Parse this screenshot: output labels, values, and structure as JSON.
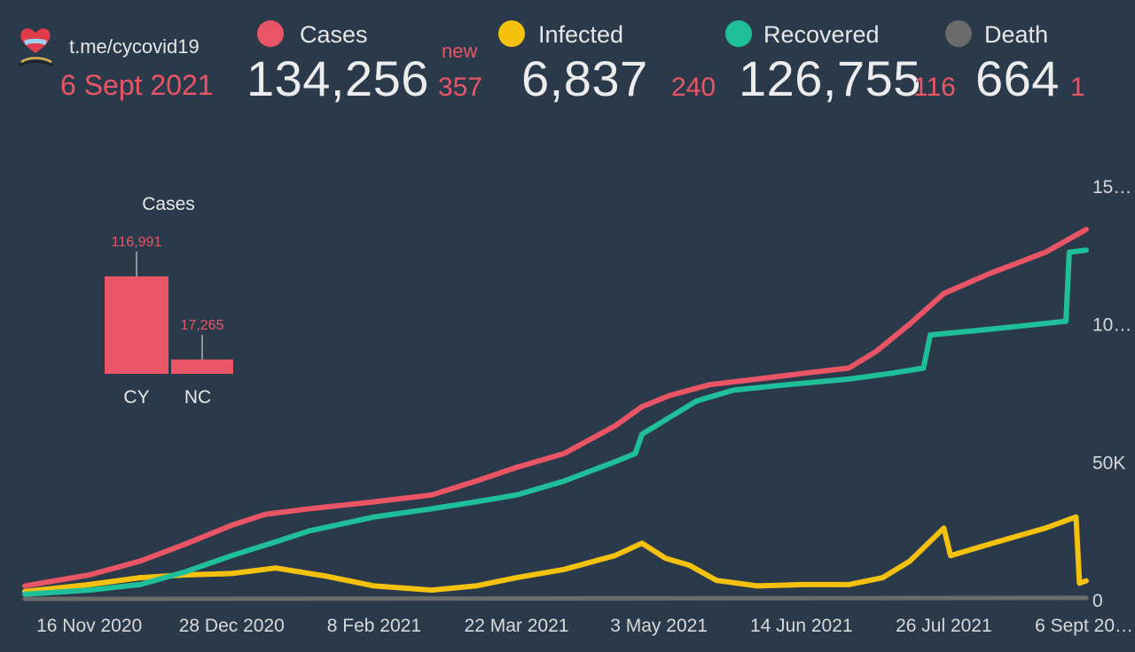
{
  "header": {
    "source_link": "t.me/cycovid19",
    "date": "6 Sept 2021",
    "new_label": "new"
  },
  "stats": [
    {
      "name": "Cases",
      "value": "134,256",
      "new": "357",
      "color": "#ea5565"
    },
    {
      "name": "Infected",
      "value": "6,837",
      "new": "240",
      "color": "#f4c20d"
    },
    {
      "name": "Recovered",
      "value": "126,755",
      "new": "116",
      "color": "#1fbf9a"
    },
    {
      "name": "Death",
      "value": "664",
      "new": "1",
      "color": "#6b6b6b"
    }
  ],
  "colors": {
    "background": "#2b3a4b",
    "cases": "#ea5565",
    "infected": "#f4c20d",
    "recovered": "#1fbf9a",
    "death": "#6b6b6b"
  },
  "chart_data": [
    {
      "type": "line",
      "x_ticks": [
        "16 Nov 2020",
        "28 Dec 2020",
        "8 Feb 2021",
        "22 Mar 2021",
        "3 May 2021",
        "14 Jun 2021",
        "26 Jul 2021",
        "6 Sept 20…"
      ],
      "y_ticks": [
        "0",
        "50K",
        "10…",
        "15…"
      ],
      "ylim": [
        0,
        150000
      ],
      "x_range": [
        "2020-10-28",
        "2021-09-06"
      ],
      "y_axis_position": "right",
      "grid": false,
      "series": [
        {
          "name": "Cases",
          "color": "#ea5565",
          "points": [
            [
              "2020-10-28",
              5000
            ],
            [
              "2020-11-16",
              9000
            ],
            [
              "2020-12-01",
              14000
            ],
            [
              "2020-12-14",
              20000
            ],
            [
              "2020-12-28",
              27000
            ],
            [
              "2021-01-07",
              31000
            ],
            [
              "2021-01-20",
              33000
            ],
            [
              "2021-02-08",
              35500
            ],
            [
              "2021-02-25",
              38000
            ],
            [
              "2021-03-10",
              43000
            ],
            [
              "2021-03-22",
              48000
            ],
            [
              "2021-04-05",
              53000
            ],
            [
              "2021-04-20",
              63000
            ],
            [
              "2021-04-28",
              70000
            ],
            [
              "2021-05-06",
              74000
            ],
            [
              "2021-05-18",
              78000
            ],
            [
              "2021-06-01",
              80000
            ],
            [
              "2021-06-14",
              82000
            ],
            [
              "2021-06-28",
              84000
            ],
            [
              "2021-07-06",
              90000
            ],
            [
              "2021-07-16",
              100000
            ],
            [
              "2021-07-26",
              111000
            ],
            [
              "2021-08-08",
              118000
            ],
            [
              "2021-08-25",
              126000
            ],
            [
              "2021-09-06",
              134256
            ]
          ]
        },
        {
          "name": "Infected",
          "color": "#f4c20d",
          "points": [
            [
              "2020-10-28",
              3000
            ],
            [
              "2020-11-16",
              5500
            ],
            [
              "2020-12-01",
              8000
            ],
            [
              "2020-12-14",
              9000
            ],
            [
              "2020-12-28",
              9500
            ],
            [
              "2021-01-10",
              11500
            ],
            [
              "2021-01-25",
              8500
            ],
            [
              "2021-02-08",
              5000
            ],
            [
              "2021-02-25",
              3500
            ],
            [
              "2021-03-10",
              5000
            ],
            [
              "2021-03-22",
              8000
            ],
            [
              "2021-04-05",
              11000
            ],
            [
              "2021-04-20",
              16000
            ],
            [
              "2021-04-28",
              20500
            ],
            [
              "2021-05-05",
              15000
            ],
            [
              "2021-05-12",
              12500
            ],
            [
              "2021-05-20",
              7000
            ],
            [
              "2021-06-01",
              5000
            ],
            [
              "2021-06-14",
              5500
            ],
            [
              "2021-06-28",
              5500
            ],
            [
              "2021-07-08",
              8000
            ],
            [
              "2021-07-16",
              14000
            ],
            [
              "2021-07-26",
              26000
            ],
            [
              "2021-07-28",
              16000
            ],
            [
              "2021-08-08",
              20000
            ],
            [
              "2021-08-25",
              26000
            ],
            [
              "2021-09-03",
              30000
            ],
            [
              "2021-09-04",
              6000
            ],
            [
              "2021-09-06",
              6837
            ]
          ]
        },
        {
          "name": "Recovered",
          "color": "#1fbf9a",
          "points": [
            [
              "2020-10-28",
              2000
            ],
            [
              "2020-11-16",
              3500
            ],
            [
              "2020-12-01",
              5500
            ],
            [
              "2020-12-14",
              10000
            ],
            [
              "2020-12-28",
              16000
            ],
            [
              "2021-01-10",
              21000
            ],
            [
              "2021-01-20",
              25000
            ],
            [
              "2021-02-08",
              30000
            ],
            [
              "2021-02-25",
              33000
            ],
            [
              "2021-03-10",
              35500
            ],
            [
              "2021-03-22",
              38000
            ],
            [
              "2021-04-05",
              43000
            ],
            [
              "2021-04-20",
              50000
            ],
            [
              "2021-04-26",
              53000
            ],
            [
              "2021-04-28",
              60000
            ],
            [
              "2021-05-06",
              66000
            ],
            [
              "2021-05-14",
              72000
            ],
            [
              "2021-05-25",
              76000
            ],
            [
              "2021-06-10",
              78000
            ],
            [
              "2021-06-28",
              80000
            ],
            [
              "2021-07-10",
              82000
            ],
            [
              "2021-07-20",
              84000
            ],
            [
              "2021-07-22",
              96000
            ],
            [
              "2021-08-08",
              98000
            ],
            [
              "2021-08-31",
              101000
            ],
            [
              "2021-09-01",
              126000
            ],
            [
              "2021-09-06",
              126755
            ]
          ]
        },
        {
          "name": "Death",
          "color": "#6b6b6b",
          "points": [
            [
              "2020-10-28",
              300
            ],
            [
              "2021-09-06",
              664
            ]
          ]
        }
      ]
    },
    {
      "type": "bar",
      "title": "Cases",
      "categories": [
        "CY",
        "NC"
      ],
      "values": [
        116991,
        17265
      ],
      "value_labels": [
        "116,991",
        "17,265"
      ],
      "color": "#ea5565"
    }
  ]
}
